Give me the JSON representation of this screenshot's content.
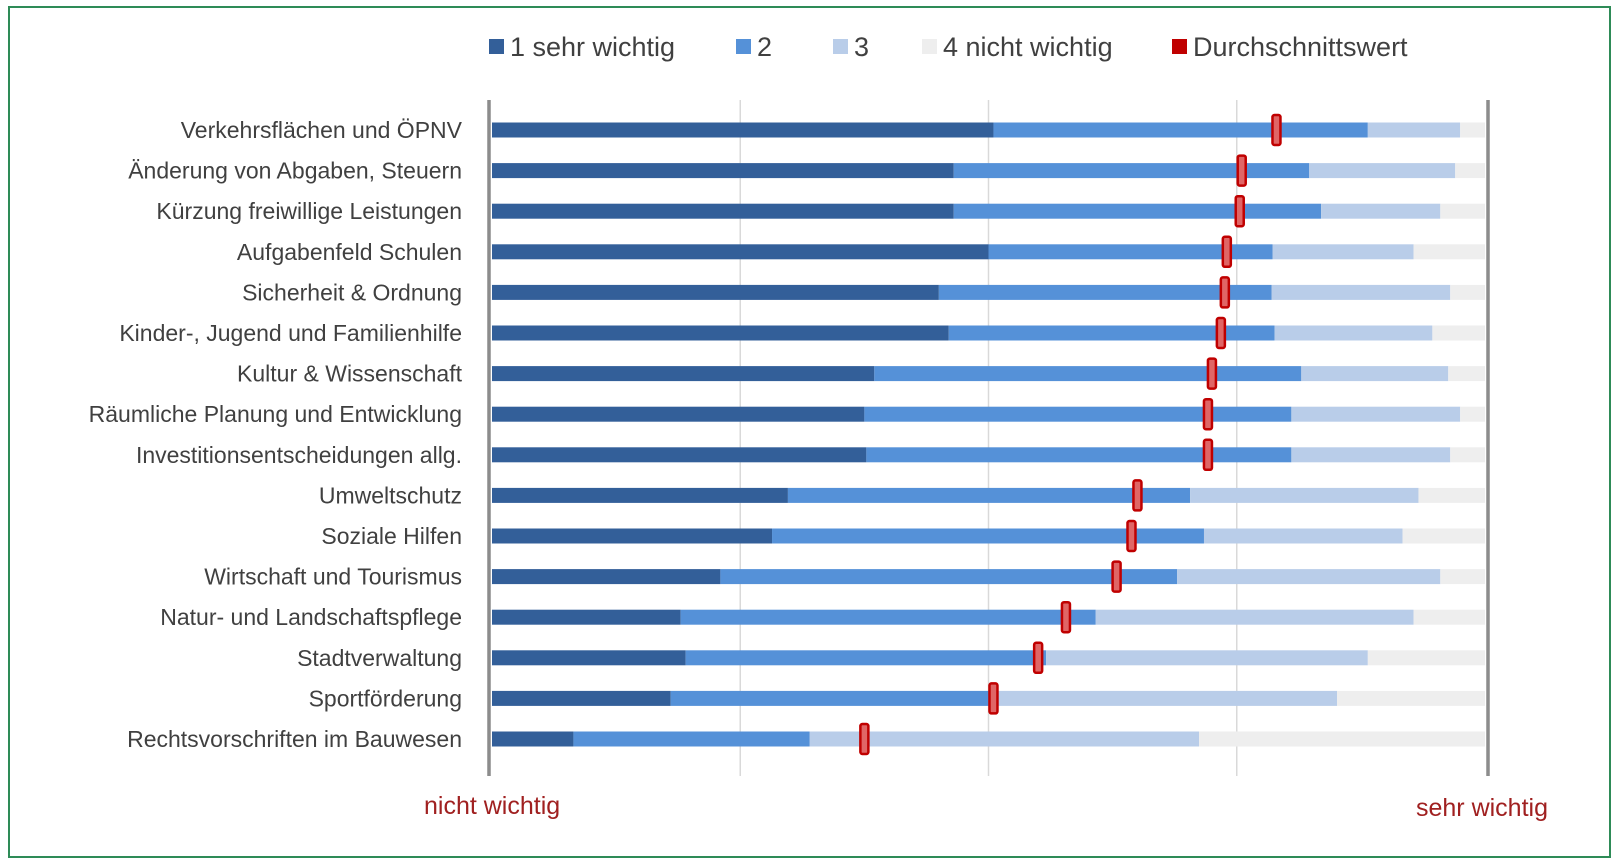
{
  "chart_data": {
    "type": "bar",
    "stacked": true,
    "orientation": "horizontal",
    "legend_position": "top",
    "grid": true,
    "xlim": [
      0,
      100
    ],
    "end_labels": {
      "left": "nicht wichtig",
      "right": "sehr wichtig"
    },
    "categories": [
      "Verkehrsflächen und ÖPNV",
      "Änderung von Abgaben,  Steuern",
      "Kürzung freiwillige Leistungen",
      "Aufgabenfeld Schulen",
      "Sicherheit & Ordnung",
      "Kinder-, Jugend und Familienhilfe",
      "Kultur & Wissenschaft",
      "Räumliche Planung und Entwicklung",
      "Investitionsentscheidungen allg.",
      "Umweltschutz",
      "Soziale Hilfen",
      "Wirtschaft und Tourismus",
      "Natur- und Landschaftspflege",
      "Stadtverwaltung",
      "Sportförderung",
      "Rechtsvorschriften im Bauwesen"
    ],
    "series": [
      {
        "name": "1 sehr wichtig",
        "color": "#335f99",
        "values": [
          50.5,
          46.5,
          46.5,
          50,
          45,
          46,
          38.5,
          37.5,
          37.7,
          29.8,
          28.2,
          23,
          19,
          19.5,
          18,
          8.2
        ]
      },
      {
        "name": "2",
        "color": "#5591d8",
        "values": [
          37.7,
          35.8,
          37,
          28.6,
          33.5,
          32.8,
          43,
          43,
          42.8,
          40.5,
          43.5,
          46,
          41.8,
          36.3,
          32.5,
          23.8
        ]
      },
      {
        "name": "3",
        "color": "#b9cde9",
        "values": [
          9.3,
          14.7,
          12,
          14.2,
          18,
          15.9,
          14.8,
          17,
          16,
          23,
          20,
          26.5,
          32,
          32.4,
          34.6,
          39.2
        ]
      },
      {
        "name": "4 nicht wichtig",
        "color": "#eeeeee",
        "values": [
          2.5,
          3,
          4.5,
          7.2,
          3.5,
          5.3,
          3.7,
          2.5,
          3.5,
          6.7,
          8.3,
          4.5,
          7.2,
          11.8,
          14.9,
          28.8
        ]
      }
    ],
    "mean_series": {
      "name": "Durchschnittswert",
      "color": "#c00000",
      "values": [
        79,
        75.5,
        75.3,
        74,
        73.8,
        73.4,
        72.5,
        72.1,
        72.1,
        65,
        64.4,
        62.9,
        57.8,
        55,
        50.5,
        37.5
      ]
    }
  }
}
